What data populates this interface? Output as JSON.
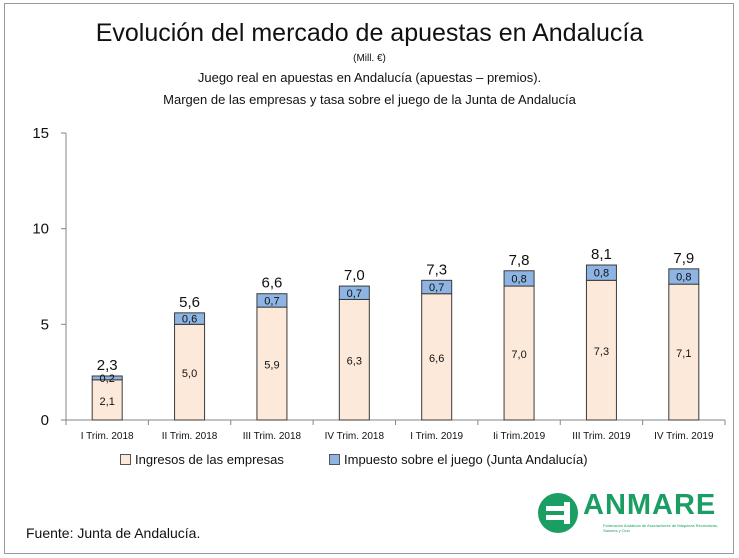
{
  "title": "Evolución del mercado de apuestas en Andalucía",
  "units": "(Mill. €)",
  "subtitle_1": "Juego real en apuestas en Andalucía (apuestas – premios).",
  "subtitle_2": "Margen de las empresas y tasa sobre el juego de la Junta de Andalucía",
  "source": "Fuente: Junta de Andalucía.",
  "logo": {
    "word": "ANMARE",
    "tagline": "Federación Andaluza de Asociaciones de Máquinas Recreativas, Salones y Ocio",
    "icon": "anmare-logo-icon",
    "color": "#1a9e63"
  },
  "colors": {
    "empresas": "#fde9d9",
    "impuesto": "#8db4e2",
    "bar_outline": "#3a3a3a",
    "axis": "#868686"
  },
  "chart_data": {
    "type": "bar",
    "stacked": true,
    "categories": [
      "I Trim. 2018",
      "II Trim. 2018",
      "III Trim. 2018",
      "IV Trim. 2018",
      "I Trim. 2019",
      "Ii Trim.2019",
      "III Trim. 2019",
      "IV Trim. 2019"
    ],
    "series": [
      {
        "name": "Ingresos de las empresas",
        "values": [
          2.1,
          5.0,
          5.9,
          6.3,
          6.6,
          7.0,
          7.3,
          7.1
        ],
        "labels": [
          "2,1",
          "5,0",
          "5,9",
          "6,3",
          "6,6",
          "7,0",
          "7,3",
          "7,1"
        ]
      },
      {
        "name": "Impuesto sobre el juego (Junta Andalucía)",
        "values": [
          0.2,
          0.6,
          0.7,
          0.7,
          0.7,
          0.8,
          0.8,
          0.8
        ],
        "labels": [
          "0,2",
          "0,6",
          "0,7",
          "0,7",
          "0,7",
          "0,8",
          "0,8",
          "0,8"
        ]
      }
    ],
    "totals": [
      "2,3",
      "5,6",
      "6,6",
      "7,0",
      "7,3",
      "7,8",
      "8,1",
      "7,9"
    ],
    "total_values": [
      2.3,
      5.6,
      6.6,
      7.0,
      7.3,
      7.8,
      8.1,
      7.9
    ],
    "ylim": [
      0,
      15
    ],
    "yticks": [
      0,
      5,
      10,
      15
    ],
    "ytick_labels": [
      "0",
      "5",
      "10",
      "15"
    ],
    "grid": false,
    "legend_position": "bottom"
  }
}
